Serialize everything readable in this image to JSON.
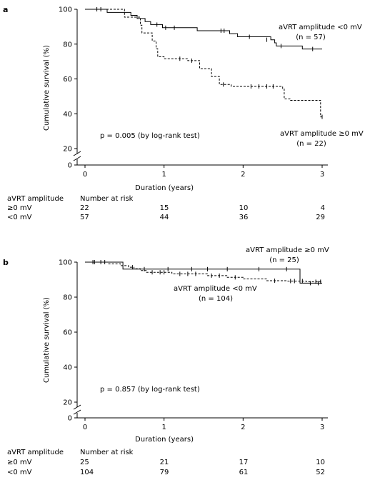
{
  "panels": [
    {
      "panel_label": "a",
      "ylabel": "Cumulative survival (%)",
      "xlabel": "Duration (years)",
      "pvalue_text": "p = 0.005 (by log-rank test)",
      "annotations": [
        {
          "line1": "aVRT amplitude <0 mV",
          "line2": "(n = 57)"
        },
        {
          "line1": "aVRT amplitude ≥0 mV",
          "line2": "(n = 22)"
        }
      ],
      "risk_table": {
        "header_label": "aVRT amplitude",
        "header_title": "Number at risk",
        "rows": [
          {
            "label": "≥0 mV",
            "counts": [
              "22",
              "15",
              "10",
              "4"
            ]
          },
          {
            "label": "<0 mV",
            "counts": [
              "57",
              "44",
              "36",
              "29"
            ]
          }
        ]
      }
    },
    {
      "panel_label": "b",
      "ylabel": "Cumulative survival (%)",
      "xlabel": "Duration (years)",
      "pvalue_text": "p = 0.857 (by log-rank test)",
      "annotations": [
        {
          "line1": "aVRT amplitude ≥0 mV",
          "line2": "(n = 25)"
        },
        {
          "line1": "aVRT amplitude <0 mV",
          "line2": "(n = 104)"
        }
      ],
      "risk_table": {
        "header_label": "aVRT amplitude",
        "header_title": "Number at risk",
        "rows": [
          {
            "label": "≥0 mV",
            "counts": [
              "25",
              "21",
              "17",
              "10"
            ]
          },
          {
            "label": "<0 mV",
            "counts": [
              "104",
              "79",
              "61",
              "52"
            ]
          }
        ]
      }
    }
  ],
  "chart_data": [
    {
      "type": "line",
      "step": true,
      "xlim": [
        0,
        3
      ],
      "ylim": [
        0,
        100
      ],
      "axis_break_y": [
        0,
        20
      ],
      "xticks": [
        "0",
        "1",
        "2",
        "3"
      ],
      "yticks": [
        "0",
        "20",
        "40",
        "60",
        "80",
        "100"
      ],
      "series": [
        {
          "style": "solid",
          "steps": [
            [
              0.0,
              100
            ],
            [
              0.28,
              98.2
            ],
            [
              0.58,
              96.5
            ],
            [
              0.66,
              94.7
            ],
            [
              0.76,
              92.9
            ],
            [
              0.83,
              91.2
            ],
            [
              0.98,
              89.4
            ],
            [
              1.42,
              87.7
            ],
            [
              1.83,
              86.0
            ],
            [
              1.93,
              84.2
            ],
            [
              2.35,
              82.5
            ],
            [
              2.4,
              80.7
            ],
            [
              2.42,
              78.9
            ],
            [
              2.75,
              77.2
            ],
            [
              3.0,
              77.2
            ]
          ],
          "censors": [
            [
              0.15,
              100
            ],
            [
              0.2,
              100
            ],
            [
              0.91,
              91.2
            ],
            [
              1.02,
              89.4
            ],
            [
              1.13,
              89.4
            ],
            [
              1.72,
              87.7
            ],
            [
              1.76,
              87.7
            ],
            [
              2.08,
              84.2
            ],
            [
              2.3,
              82.5
            ],
            [
              2.48,
              78.9
            ],
            [
              2.88,
              77.2
            ]
          ]
        },
        {
          "style": "dashed",
          "steps": [
            [
              0.0,
              100
            ],
            [
              0.5,
              95.5
            ],
            [
              0.7,
              90.9
            ],
            [
              0.72,
              86.4
            ],
            [
              0.85,
              81.8
            ],
            [
              0.9,
              77.3
            ],
            [
              0.92,
              72.7
            ],
            [
              1.0,
              71.6
            ],
            [
              1.3,
              70.5
            ],
            [
              1.45,
              65.9
            ],
            [
              1.6,
              61.4
            ],
            [
              1.7,
              56.8
            ],
            [
              1.85,
              55.7
            ],
            [
              2.5,
              54.5
            ],
            [
              2.52,
              48.5
            ],
            [
              2.6,
              47.7
            ],
            [
              2.98,
              38.2
            ],
            [
              3.0,
              38.2
            ]
          ],
          "censors": [
            [
              1.2,
              71.6
            ],
            [
              1.35,
              70.5
            ],
            [
              1.75,
              56.8
            ],
            [
              2.1,
              55.7
            ],
            [
              2.2,
              55.7
            ],
            [
              2.3,
              55.7
            ],
            [
              2.38,
              55.7
            ],
            [
              3.0,
              38.2
            ]
          ]
        }
      ]
    },
    {
      "type": "line",
      "step": true,
      "xlim": [
        0,
        3
      ],
      "ylim": [
        0,
        100
      ],
      "axis_break_y": [
        0,
        20
      ],
      "xticks": [
        "0",
        "1",
        "2",
        "3"
      ],
      "yticks": [
        "0",
        "20",
        "40",
        "60",
        "80",
        "100"
      ],
      "series": [
        {
          "style": "solid",
          "steps": [
            [
              0.0,
              100
            ],
            [
              0.48,
              96.0
            ],
            [
              0.52,
              96.0
            ],
            [
              2.7,
              96.0
            ],
            [
              2.72,
              88.0
            ],
            [
              3.0,
              88.0
            ]
          ],
          "censors": [
            [
              0.1,
              100
            ],
            [
              0.25,
              100
            ],
            [
              0.75,
              96.0
            ],
            [
              1.05,
              96.0
            ],
            [
              1.35,
              96.0
            ],
            [
              1.55,
              96.0
            ],
            [
              1.8,
              96.0
            ],
            [
              2.2,
              96.0
            ],
            [
              2.55,
              96.0
            ],
            [
              2.85,
              88.0
            ],
            [
              2.95,
              88.0
            ]
          ]
        },
        {
          "style": "dashed",
          "steps": [
            [
              0.0,
              100
            ],
            [
              0.3,
              99.0
            ],
            [
              0.45,
              98.0
            ],
            [
              0.55,
              97.1
            ],
            [
              0.62,
              96.2
            ],
            [
              0.7,
              95.2
            ],
            [
              0.78,
              94.2
            ],
            [
              1.1,
              93.3
            ],
            [
              1.55,
              92.3
            ],
            [
              1.8,
              91.3
            ],
            [
              2.0,
              90.4
            ],
            [
              2.3,
              89.4
            ],
            [
              2.55,
              89.2
            ],
            [
              2.8,
              88.8
            ],
            [
              3.0,
              88.8
            ]
          ],
          "censors": [
            [
              0.12,
              100
            ],
            [
              0.2,
              100
            ],
            [
              0.6,
              97.1
            ],
            [
              0.85,
              94.2
            ],
            [
              0.95,
              94.2
            ],
            [
              1.0,
              94.2
            ],
            [
              1.2,
              93.3
            ],
            [
              1.3,
              93.3
            ],
            [
              1.4,
              93.3
            ],
            [
              1.6,
              92.3
            ],
            [
              1.7,
              92.3
            ],
            [
              1.9,
              91.3
            ],
            [
              2.4,
              89.4
            ],
            [
              2.6,
              89.2
            ],
            [
              2.65,
              89.2
            ],
            [
              2.75,
              89.2
            ],
            [
              2.92,
              88.8
            ],
            [
              2.98,
              88.8
            ]
          ]
        }
      ]
    }
  ]
}
